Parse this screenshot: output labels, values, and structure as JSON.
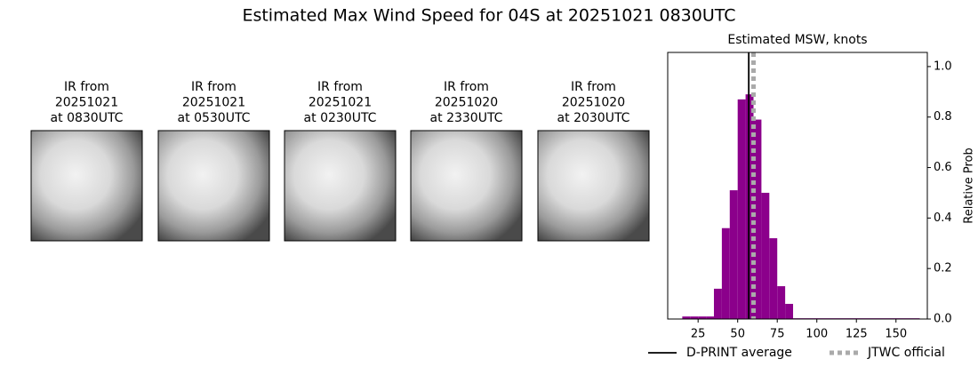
{
  "title": "Estimated Max Wind Speed for 04S at 20251021 0830UTC",
  "panels": [
    {
      "lines": [
        "IR from",
        "20251021",
        "at 0830UTC"
      ]
    },
    {
      "lines": [
        "IR from",
        "20251021",
        "at 0530UTC"
      ]
    },
    {
      "lines": [
        "IR from",
        "20251021",
        "at 0230UTC"
      ]
    },
    {
      "lines": [
        "IR from",
        "20251020",
        "at 2330UTC"
      ]
    },
    {
      "lines": [
        "IR from",
        "20251020",
        "at 2030UTC"
      ]
    }
  ],
  "chart_data": {
    "type": "histogram",
    "title": "Estimated MSW, knots",
    "ylabel": "Relative Prob",
    "bins": [
      15,
      20,
      25,
      30,
      35,
      40,
      45,
      50,
      55,
      60,
      65,
      70,
      75,
      80,
      85,
      165
    ],
    "values": [
      0.01,
      0.01,
      0.01,
      0.01,
      0.12,
      0.36,
      0.51,
      0.87,
      0.89,
      0.79,
      0.5,
      0.32,
      0.13,
      0.06,
      0.003
    ],
    "color": "#8b008b",
    "xlim": [
      5.8,
      169.8
    ],
    "xticks": [
      25,
      50,
      75,
      100,
      125,
      150
    ],
    "ylim": [
      0,
      1.056
    ],
    "yticks": [
      {
        "value": 0,
        "label": "0.0"
      },
      {
        "value": 0.2,
        "label": "0.2"
      },
      {
        "value": 0.4,
        "label": "0.4"
      },
      {
        "value": 0.6,
        "label": "0.6"
      },
      {
        "value": 0.8,
        "label": "0.8"
      },
      {
        "value": 1.0,
        "label": "1.0"
      }
    ],
    "lines": [
      {
        "name": "D-PRINT average",
        "x": 57,
        "color": "#000000",
        "dashed": false
      },
      {
        "name": "JTWC official",
        "x": 60,
        "color": "#aaaaaa",
        "dashed": true
      }
    ]
  }
}
